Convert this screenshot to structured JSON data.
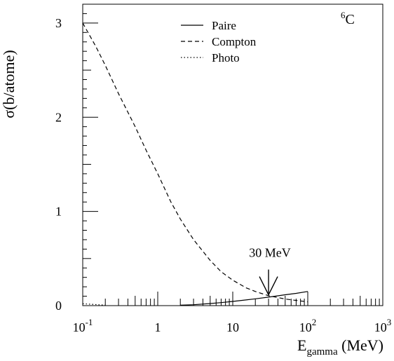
{
  "chart_data": {
    "type": "line",
    "title": "",
    "element_label": {
      "superscript": "6",
      "text": "C"
    },
    "ylabel": "σ(b/atome)",
    "xlabel": {
      "main": "E",
      "subscript": "gamma",
      "unit": " (MeV)"
    },
    "x_scale": "log",
    "xlim": [
      0.1,
      1000
    ],
    "ylim": [
      0,
      3.2
    ],
    "x_ticks": [
      {
        "value": 0.1,
        "base": "10",
        "exp": "-1"
      },
      {
        "value": 1,
        "base": "1",
        "exp": ""
      },
      {
        "value": 10,
        "base": "10",
        "exp": ""
      },
      {
        "value": 100,
        "base": "10",
        "exp": "2"
      },
      {
        "value": 1000,
        "base": "10",
        "exp": "3"
      }
    ],
    "y_ticks": [
      {
        "value": 0,
        "label": "0"
      },
      {
        "value": 1,
        "label": "1"
      },
      {
        "value": 2,
        "label": "2"
      },
      {
        "value": 3,
        "label": "3"
      }
    ],
    "grid": false,
    "legend_position": "top-center",
    "series": [
      {
        "name": "Paire",
        "style": "solid",
        "x": [
          2,
          3,
          5,
          7,
          10,
          15,
          20,
          30,
          50,
          70,
          100
        ],
        "y": [
          0.005,
          0.01,
          0.022,
          0.032,
          0.045,
          0.06,
          0.072,
          0.09,
          0.115,
          0.13,
          0.15
        ]
      },
      {
        "name": "Compton",
        "style": "dashed",
        "x": [
          0.1,
          0.15,
          0.2,
          0.3,
          0.5,
          0.7,
          1,
          1.5,
          2,
          3,
          5,
          7,
          10,
          15,
          20,
          30,
          50,
          70,
          100
        ],
        "y": [
          3.0,
          2.75,
          2.55,
          2.25,
          1.9,
          1.65,
          1.4,
          1.1,
          0.92,
          0.7,
          0.48,
          0.36,
          0.27,
          0.19,
          0.15,
          0.105,
          0.07,
          0.055,
          0.04
        ]
      },
      {
        "name": "Photo",
        "style": "dotted",
        "x": [
          0.1,
          0.2
        ],
        "y": [
          0.02,
          0.005
        ]
      }
    ],
    "annotation": {
      "text": "30 MeV",
      "x": 30,
      "y": 0.1
    }
  }
}
